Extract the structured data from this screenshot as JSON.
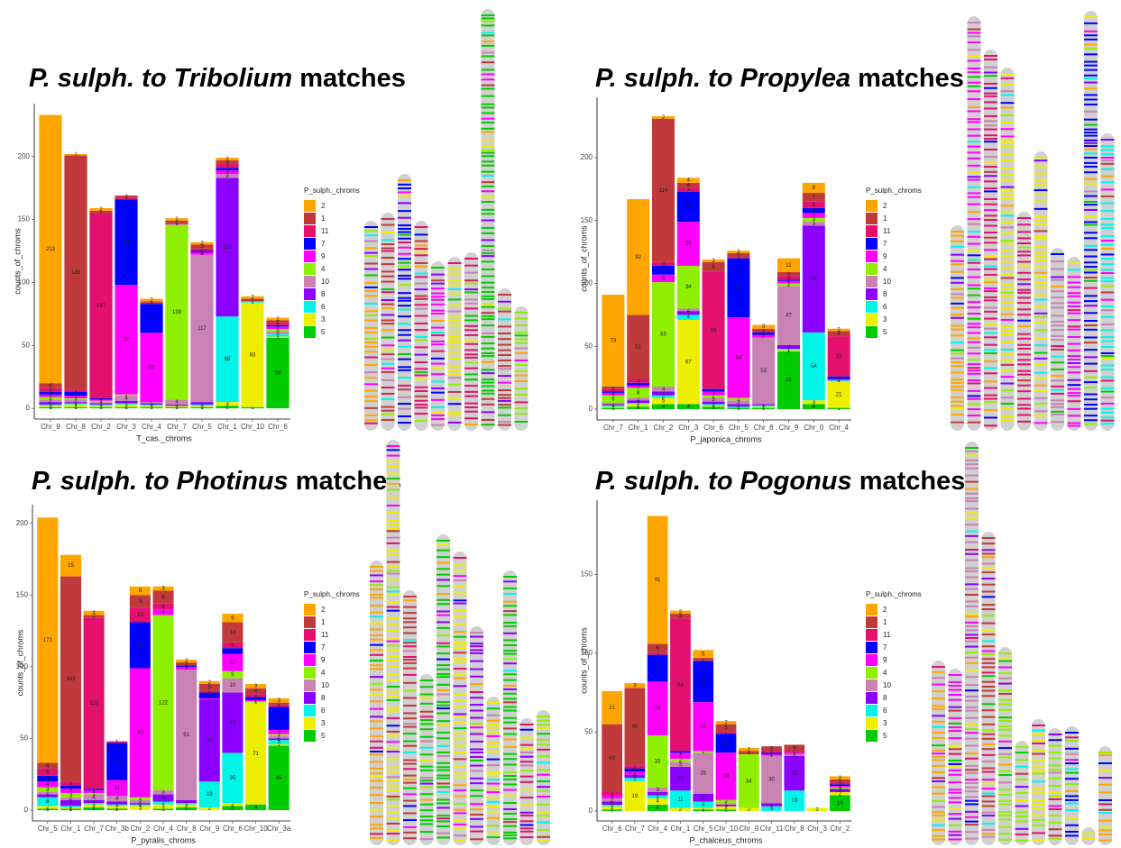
{
  "chart_data": [
    {
      "type": "stacked_bar",
      "title_italic": "P. sulph. to Tribolium",
      "title_plain": "matches",
      "x_label": "T_cas._chroms",
      "y_label": "counts_of_chroms",
      "legend_title": "P_sulph._chroms",
      "categories": [
        "Chr_9",
        "Chr_8",
        "Chr_2",
        "Chr_3",
        "Chr_4",
        "Chr_7",
        "Chr_5",
        "Chr_1",
        "Chr_10",
        "Chr_6"
      ],
      "ylim": [
        -8.5,
        242
      ],
      "yticks": [
        0,
        50,
        100,
        150,
        200
      ],
      "series": [
        {
          "name": "2",
          "color": "#FFA500",
          "values": [
            213,
            1,
            2,
            0,
            2,
            2,
            2,
            2,
            2,
            2
          ]
        },
        {
          "name": "1",
          "color": "#C0393B",
          "values": [
            4,
            186,
            2,
            2,
            1,
            2,
            3,
            3,
            2,
            2
          ]
        },
        {
          "name": "11",
          "color": "#E3106E",
          "values": [
            3,
            2,
            147,
            1,
            1,
            0,
            2,
            3,
            0,
            2
          ]
        },
        {
          "name": "7",
          "color": "#0000FF",
          "values": [
            2,
            3,
            1,
            68,
            23,
            0,
            1,
            2,
            0,
            1
          ]
        },
        {
          "name": "9",
          "color": "#FF00FF",
          "values": [
            2,
            2,
            1,
            87,
            55,
            1,
            2,
            3,
            0,
            2
          ]
        },
        {
          "name": "4",
          "color": "#8FEF00",
          "values": [
            2,
            1,
            1,
            1,
            0,
            139,
            0,
            0,
            0,
            2
          ]
        },
        {
          "name": "10",
          "color": "#C882B4",
          "values": [
            2,
            2,
            1,
            4,
            1,
            4,
            117,
            3,
            0,
            2
          ]
        },
        {
          "name": "8",
          "color": "#8B00FF",
          "values": [
            2,
            1,
            1,
            2,
            1,
            1,
            2,
            110,
            0,
            0
          ]
        },
        {
          "name": "6",
          "color": "#00F5E8",
          "values": [
            1,
            1,
            1,
            1,
            1,
            0,
            1,
            68,
            1,
            2
          ]
        },
        {
          "name": "3",
          "color": "#EEEE00",
          "values": [
            1,
            2,
            1,
            2,
            1,
            1,
            1,
            3,
            83,
            1
          ]
        },
        {
          "name": "5",
          "color": "#00CC00",
          "values": [
            1,
            1,
            1,
            1,
            1,
            1,
            1,
            2,
            1,
            56
          ]
        }
      ]
    },
    {
      "type": "stacked_bar",
      "title_italic": "P. sulph. to Propylea",
      "title_plain": "matches",
      "x_label": "P_japonica_chroms",
      "y_label": "counts_of_chroms",
      "legend_title": "P_sulph._chroms",
      "categories": [
        "Chr_7",
        "Chr_1",
        "Chr_2",
        "Chr_3",
        "Chr_6",
        "Chr_5",
        "Chr_8",
        "Chr_9",
        "Chr_0",
        "Chr_4"
      ],
      "ylim": [
        -8.6,
        248
      ],
      "yticks": [
        0,
        50,
        100,
        150,
        200
      ],
      "series": [
        {
          "name": "2",
          "color": "#FFA500",
          "values": [
            73,
            92,
            2,
            4,
            2,
            2,
            3,
            11,
            8,
            2
          ]
        },
        {
          "name": "1",
          "color": "#C0393B",
          "values": [
            2,
            51,
            114,
            4,
            8,
            3,
            2,
            3,
            7,
            4
          ]
        },
        {
          "name": "11",
          "color": "#E3106E",
          "values": [
            2,
            3,
            3,
            3,
            93,
            1,
            1,
            3,
            5,
            32
          ]
        },
        {
          "name": "7",
          "color": "#0000FF",
          "values": [
            1,
            2,
            7,
            24,
            2,
            47,
            2,
            1,
            4,
            2
          ]
        },
        {
          "name": "9",
          "color": "#FF00FF",
          "values": [
            2,
            2,
            6,
            35,
            3,
            64,
            2,
            2,
            4,
            1
          ]
        },
        {
          "name": "4",
          "color": "#8FEF00",
          "values": [
            6,
            8,
            83,
            34,
            2,
            2,
            0,
            2,
            3,
            0
          ]
        },
        {
          "name": "10",
          "color": "#C882B4",
          "values": [
            1,
            2,
            4,
            2,
            3,
            3,
            53,
            47,
            3,
            0
          ]
        },
        {
          "name": "8",
          "color": "#8B00FF",
          "values": [
            1,
            2,
            3,
            3,
            2,
            2,
            1,
            3,
            85,
            0
          ]
        },
        {
          "name": "6",
          "color": "#00F5E8",
          "values": [
            1,
            1,
            2,
            4,
            1,
            1,
            1,
            1,
            54,
            1
          ]
        },
        {
          "name": "3",
          "color": "#EEEE00",
          "values": [
            1,
            2,
            5,
            67,
            1,
            0,
            1,
            1,
            3,
            21
          ]
        },
        {
          "name": "5",
          "color": "#00CC00",
          "values": [
            1,
            2,
            4,
            4,
            2,
            1,
            1,
            46,
            4,
            1
          ]
        }
      ]
    },
    {
      "type": "stacked_bar",
      "title_italic": "P. sulph. to Photinus",
      "title_plain": "matches",
      "x_label": "P_pyralis_chroms",
      "y_label": "counts_of_chroms",
      "legend_title": "P_sulph._chroms",
      "categories": [
        "Chr_5",
        "Chr_1",
        "Chr_7",
        "Chr_3b",
        "Chr_2",
        "Chr_4",
        "Chr_8",
        "Chr_9",
        "Chr_6",
        "Chr_10",
        "Chr_3a"
      ],
      "ylim": [
        -7.5,
        213
      ],
      "yticks": [
        0,
        50,
        100,
        150,
        200
      ],
      "series": [
        {
          "name": "2",
          "color": "#FFA500",
          "values": [
            171,
            15,
            3,
            0,
            6,
            3,
            2,
            2,
            6,
            3,
            3
          ]
        },
        {
          "name": "1",
          "color": "#C0393B",
          "values": [
            4,
            143,
            2,
            0,
            9,
            9,
            2,
            5,
            14,
            4,
            2
          ]
        },
        {
          "name": "11",
          "color": "#E3106E",
          "values": [
            5,
            3,
            119,
            1,
            10,
            4,
            0,
            1,
            4,
            2,
            1
          ]
        },
        {
          "name": "7",
          "color": "#0000FF",
          "values": [
            4,
            2,
            1,
            26,
            32,
            0,
            1,
            4,
            4,
            2,
            16
          ]
        },
        {
          "name": "9",
          "color": "#FF00FF",
          "values": [
            4,
            3,
            2,
            11,
            90,
            4,
            2,
            1,
            12,
            1,
            3
          ]
        },
        {
          "name": "4",
          "color": "#8FEF00",
          "values": [
            3,
            3,
            1,
            0,
            2,
            122,
            0,
            0,
            5,
            1,
            1
          ]
        },
        {
          "name": "10",
          "color": "#C882B4",
          "values": [
            2,
            2,
            4,
            4,
            2,
            3,
            91,
            0,
            10,
            0,
            2
          ]
        },
        {
          "name": "8",
          "color": "#8B00FF",
          "values": [
            2,
            4,
            2,
            2,
            1,
            5,
            2,
            57,
            42,
            0,
            1
          ]
        },
        {
          "name": "6",
          "color": "#00F5E8",
          "values": [
            6,
            1,
            1,
            1,
            1,
            2,
            1,
            18,
            35,
            0,
            3
          ]
        },
        {
          "name": "3",
          "color": "#EEEE00",
          "values": [
            2,
            1,
            2,
            2,
            3,
            3,
            2,
            2,
            2,
            71,
            1
          ]
        },
        {
          "name": "5",
          "color": "#00CC00",
          "values": [
            1,
            1,
            2,
            1,
            0,
            1,
            2,
            0,
            3,
            4,
            45
          ]
        }
      ]
    },
    {
      "type": "stacked_bar",
      "title_italic": "P. sulph. to Pogonus",
      "title_plain": "matches",
      "x_label": "P_chalceus_chroms",
      "y_label": "counts_of_chroms",
      "legend_title": "P_sulph._chroms",
      "categories": [
        "Chr_6",
        "Chr_7",
        "Chr_4",
        "Chr_1",
        "Chr_5",
        "Chr_10",
        "Chr_9",
        "Chr_11",
        "Chr_8",
        "Chr_3",
        "Chr_2"
      ],
      "ylim": [
        -6.3,
        197
      ],
      "yticks": [
        0,
        50,
        100,
        150
      ],
      "series": [
        {
          "name": "2",
          "color": "#FFA500",
          "values": [
            21,
            3,
            81,
            2,
            5,
            2,
            2,
            0,
            0,
            0,
            2
          ]
        },
        {
          "name": "1",
          "color": "#C0393B",
          "values": [
            43,
            49,
            6,
            3,
            2,
            5,
            2,
            3,
            4,
            0,
            2
          ]
        },
        {
          "name": "11",
          "color": "#E3106E",
          "values": [
            2,
            2,
            1,
            84,
            0,
            1,
            0,
            1,
            1,
            0,
            1
          ]
        },
        {
          "name": "7",
          "color": "#0000FF",
          "values": [
            0,
            2,
            17,
            1,
            26,
            12,
            0,
            1,
            0,
            0,
            1
          ]
        },
        {
          "name": "9",
          "color": "#FF00FF",
          "values": [
            2,
            2,
            34,
            4,
            31,
            30,
            0,
            1,
            1,
            0,
            1
          ]
        },
        {
          "name": "4",
          "color": "#8FEF00",
          "values": [
            0,
            0,
            33,
            2,
            1,
            2,
            34,
            0,
            0,
            0,
            1
          ]
        },
        {
          "name": "10",
          "color": "#C882B4",
          "values": [
            2,
            0,
            3,
            3,
            26,
            1,
            0,
            30,
            1,
            0,
            0
          ]
        },
        {
          "name": "8",
          "color": "#8B00FF",
          "values": [
            2,
            2,
            2,
            15,
            5,
            1,
            0,
            2,
            22,
            0,
            2
          ]
        },
        {
          "name": "6",
          "color": "#00F5E8",
          "values": [
            1,
            2,
            2,
            11,
            4,
            0,
            0,
            3,
            13,
            0,
            0
          ]
        },
        {
          "name": "3",
          "color": "#EEEE00",
          "values": [
            2,
            19,
            4,
            2,
            1,
            2,
            2,
            0,
            0,
            2,
            2
          ]
        },
        {
          "name": "5",
          "color": "#00CC00",
          "values": [
            1,
            0,
            4,
            0,
            1,
            1,
            0,
            0,
            0,
            0,
            10
          ]
        }
      ]
    }
  ]
}
